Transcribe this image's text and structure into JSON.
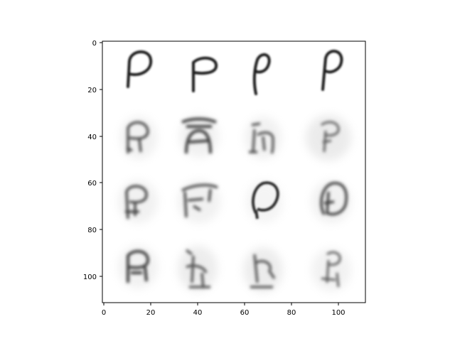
{
  "figure": {
    "image_rows": 4,
    "image_cols": 4,
    "colormap": "gray_r"
  },
  "axes": {
    "x_ticks": [
      "0",
      "20",
      "40",
      "60",
      "80",
      "100"
    ],
    "y_ticks": [
      "0",
      "20",
      "40",
      "60",
      "80",
      "100"
    ],
    "x_range": [
      -0.5,
      111.5
    ],
    "y_range": [
      -0.5,
      111.5
    ]
  },
  "panels": [
    {
      "row": 0,
      "glyph": "P",
      "style": "sharp"
    },
    {
      "row": 0,
      "glyph": "P",
      "style": "sharp"
    },
    {
      "row": 0,
      "glyph": "P",
      "style": "sharp"
    },
    {
      "row": 0,
      "glyph": "P",
      "style": "sharp"
    },
    {
      "row": 1,
      "glyph": "blurry",
      "style": "noisy"
    },
    {
      "row": 1,
      "glyph": "blurry",
      "style": "noisy"
    },
    {
      "row": 1,
      "glyph": "blurry",
      "style": "noisy"
    },
    {
      "row": 1,
      "glyph": "blurry",
      "style": "noisy"
    },
    {
      "row": 2,
      "glyph": "blurry",
      "style": "noisy"
    },
    {
      "row": 2,
      "glyph": "blurry",
      "style": "noisy"
    },
    {
      "row": 2,
      "glyph": "blurry",
      "style": "noisy"
    },
    {
      "row": 2,
      "glyph": "blurry",
      "style": "noisy"
    },
    {
      "row": 3,
      "glyph": "blurry",
      "style": "noisy"
    },
    {
      "row": 3,
      "glyph": "blurry",
      "style": "noisy"
    },
    {
      "row": 3,
      "glyph": "blurry",
      "style": "noisy"
    },
    {
      "row": 3,
      "glyph": "blurry",
      "style": "noisy"
    }
  ]
}
